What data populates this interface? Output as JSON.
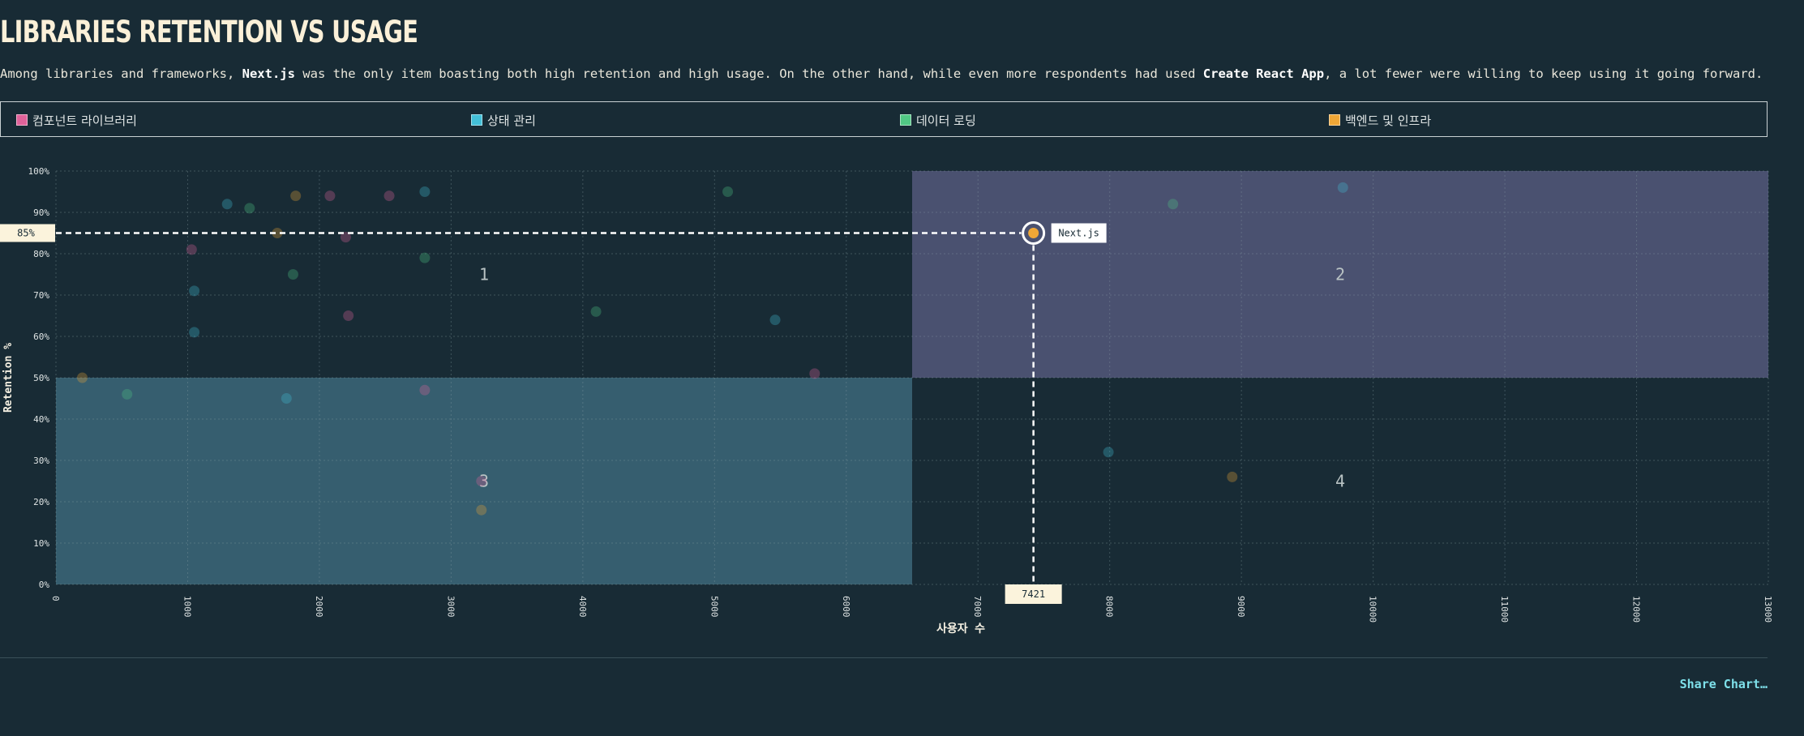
{
  "header": {
    "title": "Libraries Retention vs Usage",
    "desc_before": "Among libraries and frameworks, ",
    "desc_b1": "Next.js",
    "desc_mid": " was the only item boasting both high retention and high usage. On the other hand, while even more respondents had used ",
    "desc_b2": "Create React App",
    "desc_after": ", a lot fewer were willing to keep using it going forward."
  },
  "legend": [
    {
      "label": "컴포넌트 라이브러리",
      "color": "#e0629a"
    },
    {
      "label": "상태 관리",
      "color": "#43c0d8"
    },
    {
      "label": "데이터 로딩",
      "color": "#51c884"
    },
    {
      "label": "백엔드 및 인프라",
      "color": "#f0a736"
    }
  ],
  "footer": {
    "share_label": "Share Chart…"
  },
  "chart_data": {
    "type": "scatter",
    "xlabel": "사용자 수",
    "ylabel": "Retention %",
    "xlim": [
      0,
      13000
    ],
    "ylim": [
      0,
      100
    ],
    "x_ticks": [
      0,
      1000,
      2000,
      3000,
      4000,
      5000,
      6000,
      7000,
      8000,
      9000,
      10000,
      11000,
      12000,
      13000
    ],
    "y_ticks": [
      "0%",
      "10%",
      "20%",
      "30%",
      "40%",
      "50%",
      "60%",
      "70%",
      "80%",
      "90%",
      "100%"
    ],
    "quadrants": [
      {
        "label": "1",
        "color": "#182b35"
      },
      {
        "label": "2",
        "color": "#4a5170"
      },
      {
        "label": "3",
        "color": "#365e6f"
      },
      {
        "label": "4",
        "color": "#182b35"
      }
    ],
    "quadrant_split": {
      "x": 6500,
      "y": 50
    },
    "highlight": {
      "name": "Next.js",
      "x": 7421,
      "y": 85,
      "x_label": "7421",
      "y_label": "85%",
      "color": "#f0a736"
    },
    "points": [
      {
        "x": 200,
        "y": 50,
        "category": 3
      },
      {
        "x": 540,
        "y": 46,
        "category": 2
      },
      {
        "x": 1030,
        "y": 81,
        "category": 0
      },
      {
        "x": 1050,
        "y": 71,
        "category": 1
      },
      {
        "x": 1050,
        "y": 61,
        "category": 1
      },
      {
        "x": 1300,
        "y": 92,
        "category": 1
      },
      {
        "x": 1470,
        "y": 91,
        "category": 2
      },
      {
        "x": 1680,
        "y": 85,
        "category": 3
      },
      {
        "x": 1750,
        "y": 45,
        "category": 1
      },
      {
        "x": 1800,
        "y": 75,
        "category": 2
      },
      {
        "x": 1820,
        "y": 94,
        "category": 3
      },
      {
        "x": 2080,
        "y": 94,
        "category": 0
      },
      {
        "x": 2200,
        "y": 84,
        "category": 0
      },
      {
        "x": 2220,
        "y": 65,
        "category": 0
      },
      {
        "x": 2530,
        "y": 94,
        "category": 0
      },
      {
        "x": 2800,
        "y": 95,
        "category": 1
      },
      {
        "x": 2800,
        "y": 79,
        "category": 2
      },
      {
        "x": 2800,
        "y": 47,
        "category": 0
      },
      {
        "x": 3230,
        "y": 25,
        "category": 0
      },
      {
        "x": 3230,
        "y": 18,
        "category": 3
      },
      {
        "x": 4100,
        "y": 66,
        "category": 2
      },
      {
        "x": 5100,
        "y": 95,
        "category": 2
      },
      {
        "x": 5460,
        "y": 64,
        "category": 1
      },
      {
        "x": 5760,
        "y": 51,
        "category": 0
      },
      {
        "x": 7990,
        "y": 32,
        "category": 1
      },
      {
        "x": 8480,
        "y": 92,
        "category": 2
      },
      {
        "x": 8930,
        "y": 26,
        "category": 3
      },
      {
        "x": 9770,
        "y": 96,
        "category": 1
      }
    ]
  }
}
